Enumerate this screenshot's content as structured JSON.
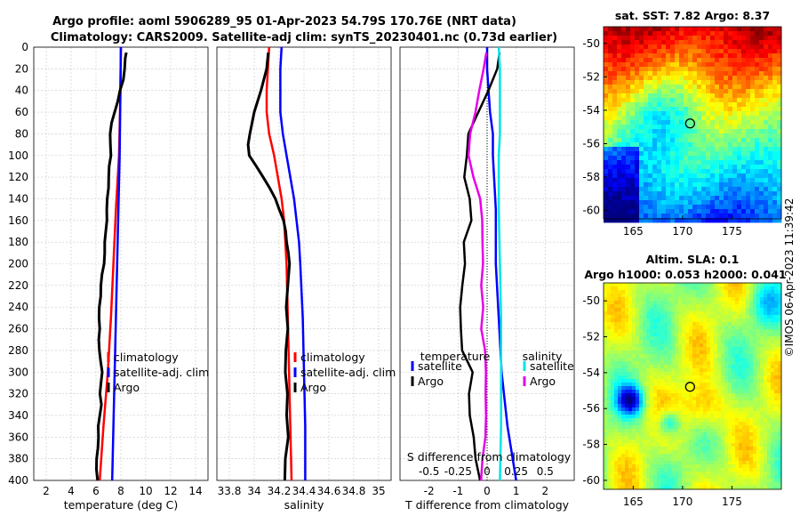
{
  "figure": {
    "title_line1": "Argo profile: aoml 5906289_95 01-Apr-2023 54.79S 170.76E (NRT data)",
    "title_line2": "Climatology: CARS2009. Satellite-adj clim: synTS_20230401.nc (0.73d earlier)",
    "watermark": "©IMOS 06-Apr-2023 11:39:42"
  },
  "colors": {
    "climatology": "#ff0000",
    "satellite": "#0000ff",
    "argo": "#000000",
    "salinity_satellite": "#00e5e5",
    "salinity_argo": "#e600e6",
    "grid": "#c8c8c8"
  },
  "chart_data": [
    {
      "id": "temperature",
      "type": "line",
      "xlabel": "temperature (deg C)",
      "ylabel": "",
      "xlim": [
        1,
        15
      ],
      "ylim": [
        400,
        0
      ],
      "xticks": [
        2,
        4,
        6,
        8,
        10,
        12,
        14
      ],
      "xtick_labels": [
        "2",
        "4",
        "6",
        "8",
        "10",
        "12",
        "14"
      ],
      "yticks": [
        0,
        20,
        40,
        60,
        80,
        100,
        120,
        140,
        160,
        180,
        200,
        220,
        240,
        260,
        280,
        300,
        320,
        340,
        360,
        380,
        400
      ],
      "ytick_labels": [
        "0",
        "20",
        "40",
        "60",
        "80",
        "100",
        "120",
        "140",
        "160",
        "180",
        "200",
        "220",
        "240",
        "260",
        "280",
        "300",
        "320",
        "340",
        "360",
        "380",
        "400"
      ],
      "legend": [
        "climatology",
        "satellite-adj. clim",
        "Argo"
      ],
      "series": [
        {
          "name": "climatology",
          "color": "#ff0000",
          "depth": [
            0,
            50,
            100,
            150,
            200,
            250,
            300,
            350,
            400
          ],
          "values": [
            8.0,
            7.95,
            7.85,
            7.6,
            7.4,
            7.2,
            6.95,
            6.6,
            6.3
          ]
        },
        {
          "name": "satellite-adj. clim",
          "color": "#0000ff",
          "depth": [
            0,
            50,
            100,
            150,
            200,
            250,
            300,
            350,
            400
          ],
          "values": [
            8.0,
            7.95,
            7.9,
            7.8,
            7.7,
            7.6,
            7.5,
            7.4,
            7.3
          ]
        },
        {
          "name": "Argo",
          "color": "#000000",
          "depth": [
            5,
            10,
            20,
            30,
            40,
            50,
            60,
            70,
            80,
            90,
            100,
            110,
            120,
            130,
            140,
            150,
            160,
            170,
            180,
            190,
            200,
            210,
            220,
            230,
            240,
            250,
            260,
            270,
            280,
            290,
            300,
            310,
            320,
            330,
            340,
            350,
            360,
            370,
            380,
            390,
            400
          ],
          "values": [
            8.4,
            8.4,
            8.3,
            8.2,
            8.0,
            7.8,
            7.5,
            7.3,
            7.2,
            7.15,
            7.2,
            7.1,
            7.0,
            6.95,
            6.9,
            6.85,
            6.8,
            6.75,
            6.7,
            6.65,
            6.6,
            6.5,
            6.4,
            6.35,
            6.3,
            6.3,
            6.3,
            6.25,
            6.35,
            6.4,
            6.5,
            6.45,
            6.35,
            6.4,
            6.3,
            6.2,
            6.15,
            6.1,
            6.05,
            6.0,
            6.05
          ]
        }
      ]
    },
    {
      "id": "salinity",
      "type": "line",
      "xlabel": "salinity",
      "xlim": [
        33.7,
        35.1
      ],
      "ylim": [
        400,
        0
      ],
      "xticks": [
        33.8,
        34,
        34.2,
        34.4,
        34.6,
        34.8,
        35
      ],
      "xtick_labels": [
        "33.8",
        "34",
        "34.2",
        "34.4",
        "34.6",
        "34.8",
        "35"
      ],
      "legend": [
        "climatology",
        "satellite-adj. clim",
        "Argo"
      ],
      "series": [
        {
          "name": "climatology",
          "color": "#ff0000",
          "depth": [
            0,
            20,
            40,
            60,
            80,
            100,
            120,
            140,
            160,
            180,
            200,
            250,
            300,
            350,
            400
          ],
          "values": [
            34.12,
            34.11,
            34.1,
            34.1,
            34.12,
            34.16,
            34.19,
            34.22,
            34.24,
            34.25,
            34.26,
            34.27,
            34.28,
            34.29,
            34.3
          ]
        },
        {
          "name": "satellite-adj. clim",
          "color": "#0000ff",
          "depth": [
            0,
            20,
            40,
            60,
            80,
            100,
            120,
            140,
            160,
            180,
            200,
            250,
            300,
            350,
            400
          ],
          "values": [
            34.22,
            34.21,
            34.21,
            34.21,
            34.23,
            34.26,
            34.29,
            34.32,
            34.34,
            34.36,
            34.37,
            34.39,
            34.4,
            34.41,
            34.41
          ]
        },
        {
          "name": "Argo",
          "color": "#000000",
          "depth": [
            5,
            20,
            40,
            60,
            80,
            90,
            100,
            110,
            120,
            130,
            140,
            150,
            160,
            170,
            180,
            190,
            200,
            220,
            240,
            260,
            280,
            300,
            320,
            340,
            360,
            380,
            400
          ],
          "values": [
            34.11,
            34.1,
            34.06,
            34.0,
            33.97,
            33.95,
            33.96,
            34.02,
            34.07,
            34.12,
            34.17,
            34.2,
            34.23,
            34.25,
            34.26,
            34.27,
            34.28,
            34.27,
            34.26,
            34.27,
            34.26,
            34.25,
            34.27,
            34.26,
            34.27,
            34.25,
            34.24
          ]
        }
      ]
    },
    {
      "id": "differences",
      "type": "line",
      "xlabel": "T difference from climatology",
      "top_xlabel": "S difference from climatology",
      "xlim": [
        -3,
        3
      ],
      "ylim": [
        400,
        0
      ],
      "xticks": [
        -2,
        -1,
        0,
        1,
        2
      ],
      "xtick_labels": [
        "-2",
        "-1",
        "0",
        "1",
        "2"
      ],
      "top_xticks": [
        -0.5,
        -0.25,
        0,
        0.25,
        0.5
      ],
      "top_xtick_labels": [
        "-0.5",
        "-0.25",
        "0",
        "0.25",
        "0.5"
      ],
      "top_xlim": [
        -0.75,
        0.75
      ],
      "legend_temperature_title": "temperature",
      "legend_salinity_title": "salinity",
      "legend_temperature": [
        "satellite",
        "Argo"
      ],
      "legend_salinity": [
        "satellite",
        "Argo"
      ],
      "series": [
        {
          "name": "T satellite",
          "color": "#0000ff",
          "axis": "T",
          "depth": [
            0,
            20,
            40,
            60,
            80,
            100,
            150,
            200,
            250,
            300,
            350,
            400
          ],
          "values": [
            0.0,
            0.0,
            0.05,
            0.1,
            0.2,
            0.2,
            0.3,
            0.3,
            0.4,
            0.5,
            0.7,
            1.0
          ]
        },
        {
          "name": "T Argo",
          "color": "#000000",
          "axis": "T",
          "depth": [
            5,
            20,
            40,
            60,
            80,
            100,
            120,
            140,
            160,
            180,
            200,
            220,
            240,
            260,
            280,
            300,
            320,
            340,
            360,
            380,
            400
          ],
          "values": [
            0.4,
            0.35,
            0.1,
            -0.3,
            -0.6,
            -0.7,
            -0.8,
            -0.6,
            -0.6,
            -0.8,
            -0.8,
            -0.85,
            -0.9,
            -0.9,
            -0.8,
            -0.5,
            -0.6,
            -0.6,
            -0.5,
            -0.4,
            -0.3
          ]
        },
        {
          "name": "S satellite",
          "color": "#00e5e5",
          "axis": "S",
          "depth": [
            0,
            20,
            40,
            60,
            80,
            100,
            150,
            200,
            250,
            300,
            350,
            400
          ],
          "values": [
            0.1,
            0.11,
            0.11,
            0.11,
            0.11,
            0.1,
            0.1,
            0.11,
            0.12,
            0.12,
            0.12,
            0.11
          ]
        },
        {
          "name": "S Argo",
          "color": "#e600e6",
          "axis": "S",
          "depth": [
            5,
            20,
            40,
            60,
            80,
            100,
            120,
            140,
            160,
            180,
            200,
            220,
            240,
            260,
            280,
            300,
            320,
            340,
            360,
            380,
            400
          ],
          "values": [
            -0.01,
            -0.03,
            -0.06,
            -0.1,
            -0.14,
            -0.16,
            -0.12,
            -0.06,
            -0.05,
            -0.04,
            -0.04,
            -0.05,
            -0.03,
            -0.05,
            -0.01,
            -0.01,
            -0.01,
            -0.01,
            -0.02,
            -0.04,
            -0.06
          ]
        }
      ]
    },
    {
      "id": "map_sst",
      "type": "heatmap",
      "title": "sat. SST: 7.82 Argo: 8.37",
      "xlim": [
        162,
        180
      ],
      "ylim": [
        -60.5,
        -49
      ],
      "xticks": [
        165,
        170,
        175
      ],
      "xtick_labels": [
        "165",
        "170",
        "175"
      ],
      "yticks": [
        -50,
        -52,
        -54,
        -56,
        -58,
        -60
      ],
      "ytick_labels": [
        "-50",
        "-52",
        "-54",
        "-56",
        "-58",
        "-60"
      ],
      "marker": {
        "lon": 170.76,
        "lat": -54.79
      }
    },
    {
      "id": "map_sla",
      "type": "heatmap",
      "title": "Altim. SLA: 0.1",
      "title2": "Argo h1000: 0.053 h2000: 0.041",
      "xlim": [
        162,
        180
      ],
      "ylim": [
        -60.5,
        -49
      ],
      "xticks": [
        165,
        170,
        175
      ],
      "xtick_labels": [
        "165",
        "170",
        "175"
      ],
      "yticks": [
        -50,
        -52,
        -54,
        -56,
        -58,
        -60
      ],
      "ytick_labels": [
        "-50",
        "-52",
        "-54",
        "-56",
        "-58",
        "-60"
      ],
      "marker": {
        "lon": 170.76,
        "lat": -54.79
      }
    }
  ]
}
